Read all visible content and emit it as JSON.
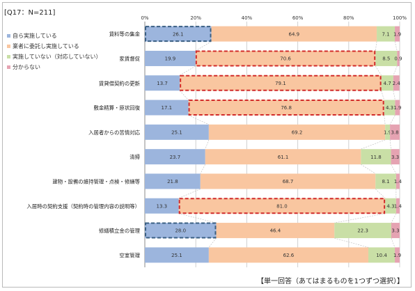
{
  "header": "[Q17：N=211]",
  "footer": "【単一回答（あてはまるものを1つずつ選択）】",
  "chart_data": {
    "type": "bar",
    "orientation": "horizontal",
    "stacked": true,
    "xlim": [
      0,
      100
    ],
    "x_ticks": [
      "0%",
      "20%",
      "40%",
      "60%",
      "80%",
      "100%"
    ],
    "grid": true,
    "legend_position": "top-left",
    "categories": [
      "賃料等の集金",
      "家賃督促",
      "賃貸借契約の更新",
      "敷金精算・原状回復",
      "入居者からの苦情対応",
      "清掃",
      "建物・設備の維持管理・点検・修繕等",
      "入居時の契約支援（契約時の管理内容の説明等）",
      "修繕積立金の管理",
      "空室管理"
    ],
    "series": [
      {
        "name": "自ら実施している",
        "color": "#9cb5dd",
        "values": [
          26.1,
          19.9,
          13.7,
          17.1,
          25.1,
          23.7,
          21.8,
          13.3,
          28.0,
          25.1
        ],
        "labels": [
          "26.1",
          "19.9",
          "13.7",
          "17.1",
          "25.1",
          "23.7",
          "21.8",
          "13.3",
          "28.0",
          "25.1"
        ]
      },
      {
        "name": "業者に委託し実施している",
        "color": "#f9c6a0",
        "values": [
          64.9,
          70.6,
          79.1,
          76.8,
          69.2,
          61.1,
          68.7,
          81.0,
          46.4,
          62.6
        ],
        "labels": [
          "64.9",
          "70.6",
          "79.1",
          "76.8",
          "69.2",
          "61.1",
          "68.7",
          "81.0",
          "46.4",
          "62.6"
        ]
      },
      {
        "name": "実施していない（対応していない）",
        "color": "#c9dfa6",
        "values": [
          7.1,
          8.5,
          4.7,
          4.3,
          1.9,
          11.8,
          8.1,
          4.3,
          22.3,
          10.4
        ],
        "labels": [
          "7.1",
          "8.5",
          "4.7",
          "4.3",
          "1.9",
          "11.8",
          "8.1",
          "4.3",
          "22.3",
          "10.4"
        ]
      },
      {
        "name": "分からない",
        "color": "#e5a3b2",
        "values": [
          1.9,
          0.9,
          2.4,
          1.9,
          3.8,
          3.3,
          1.4,
          1.4,
          3.3,
          1.9
        ],
        "labels": [
          "1.9",
          "0.9",
          "2.4",
          "1.9",
          "3.8",
          "3.3",
          "1.4",
          "1.4",
          "3.3",
          "1.9"
        ]
      }
    ],
    "highlight_boxes": [
      {
        "category": "賃料等の集金",
        "series": "自ら実施している",
        "style": "dashed",
        "color": "#3a5f83"
      },
      {
        "category": "家賃督促",
        "series": "業者に委託し実施している",
        "style": "dashed",
        "color": "#d12a2a"
      },
      {
        "category": "賃貸借契約の更新",
        "series": "業者に委託し実施している",
        "style": "dashed",
        "color": "#d12a2a"
      },
      {
        "category": "敷金精算・原状回復",
        "series": "業者に委託し実施している",
        "style": "dashed",
        "color": "#d12a2a"
      },
      {
        "category": "入居時の契約支援（契約時の管理内容の説明等）",
        "series": "業者に委託し実施している",
        "style": "dashed",
        "color": "#d12a2a"
      },
      {
        "category": "修繕積立金の管理",
        "series": "自ら実施している",
        "style": "dashed",
        "color": "#3a5f83"
      }
    ]
  }
}
